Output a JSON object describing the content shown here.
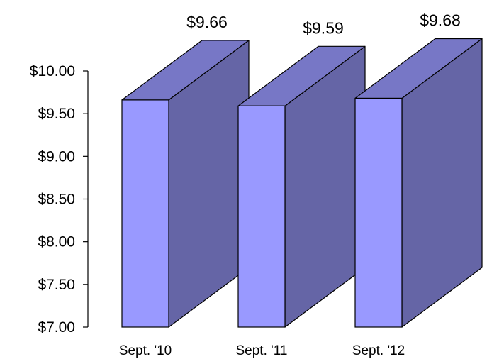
{
  "chart_data": {
    "type": "bar",
    "style": "3d-column",
    "categories": [
      "Sept. '10",
      "Sept. '11",
      "Sept. '12"
    ],
    "values": [
      9.66,
      9.59,
      9.68
    ],
    "data_labels": [
      "$9.66",
      "$9.59",
      "$9.68"
    ],
    "ylim": [
      7.0,
      10.0
    ],
    "y_ticks": [
      10.0,
      9.5,
      9.0,
      8.5,
      8.0,
      7.5,
      7.0
    ],
    "y_tick_labels": [
      "$10.00",
      "$9.50",
      "$9.00",
      "$8.50",
      "$8.00",
      "$7.50",
      "$7.00"
    ],
    "grid": false,
    "legend": "none",
    "colors": {
      "front": "#9999ff",
      "top": "#7777c6",
      "side": "#6565a6",
      "outline": "#000000"
    }
  }
}
